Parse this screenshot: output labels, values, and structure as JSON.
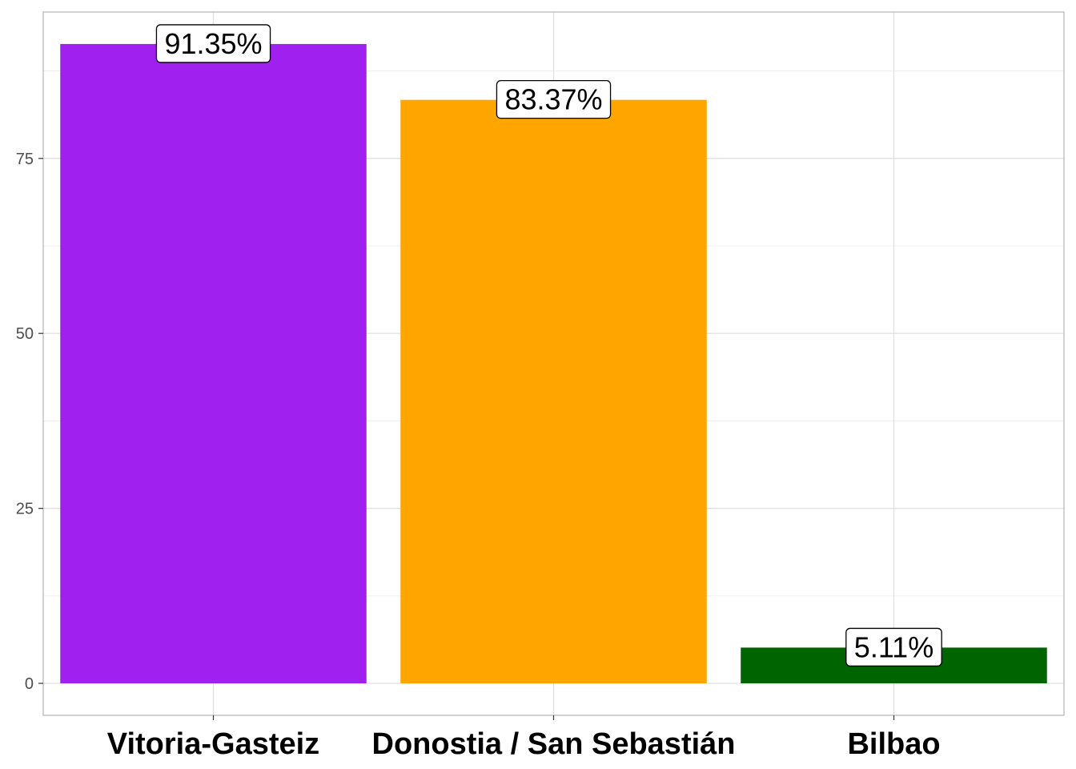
{
  "chart_data": {
    "type": "bar",
    "title": "",
    "xlabel": "",
    "ylabel": "",
    "categories": [
      "Vitoria-Gasteiz",
      "Donostia / San Sebastián",
      "Bilbao"
    ],
    "values": [
      91.35,
      83.37,
      5.11
    ],
    "data_labels": [
      "91.35%",
      "83.37%",
      "5.11%"
    ],
    "colors": [
      "#a020f0",
      "#ffa500",
      "#006400"
    ],
    "y_ticks": [
      0,
      25,
      50,
      75
    ],
    "y_tick_labels": [
      "0",
      "25",
      "50",
      "75"
    ],
    "ylim": [
      -4.57,
      95.92
    ],
    "grid": true,
    "legend": "none"
  }
}
